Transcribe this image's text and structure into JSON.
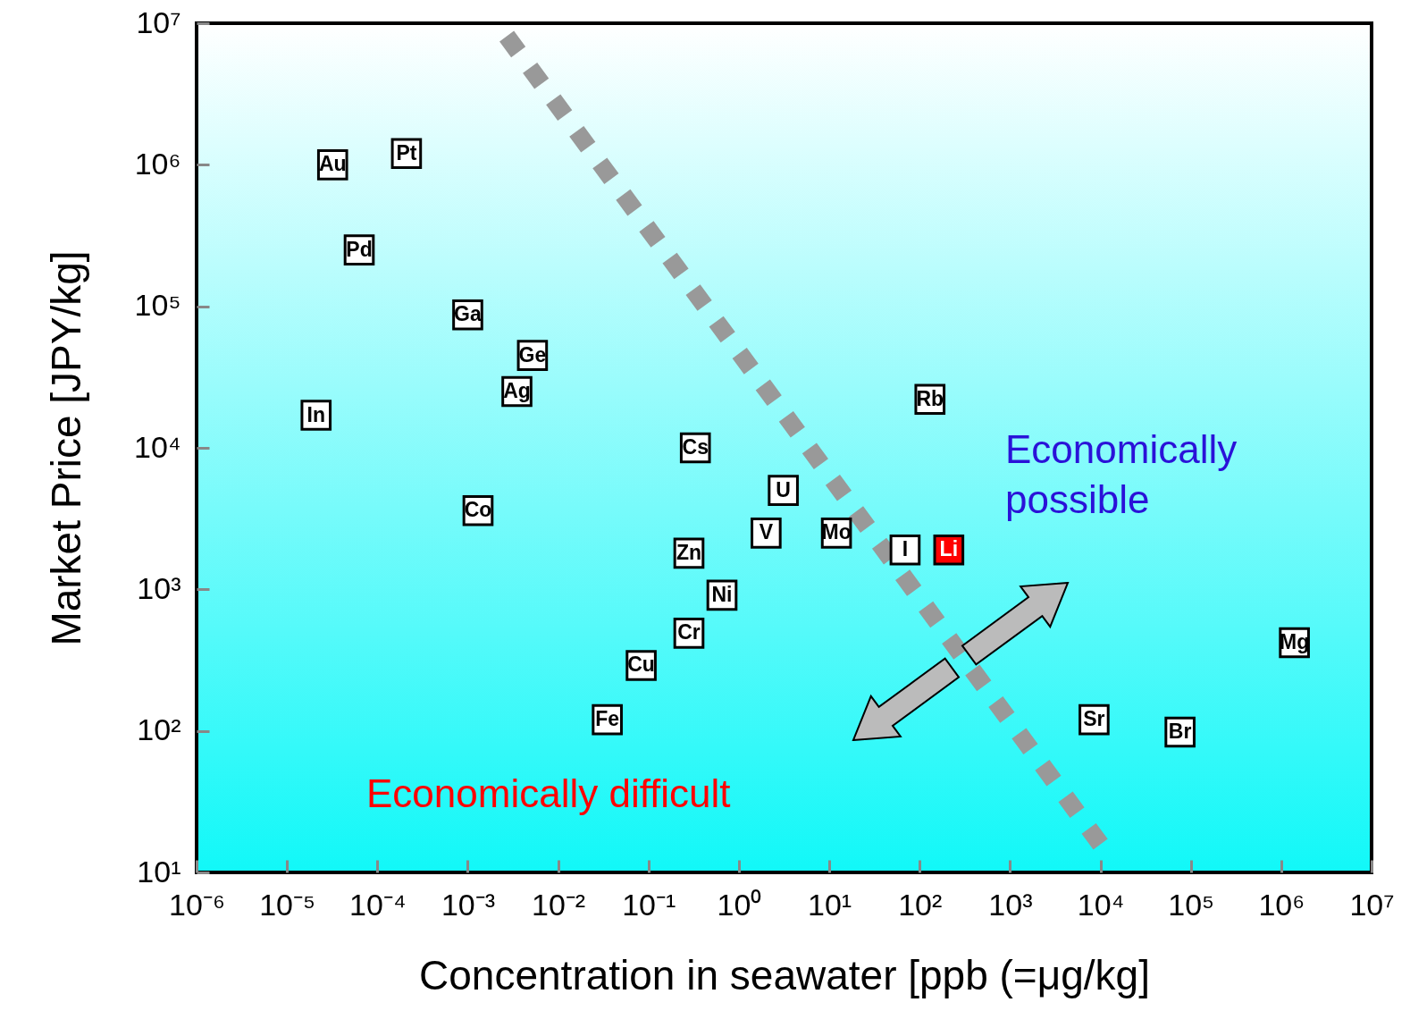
{
  "chart_data": {
    "type": "scatter",
    "xlabel": "Concentration in seawater [ppb (=μg/kg]",
    "ylabel": "Market Price [JPY/kg]",
    "log": "xy",
    "grid": false,
    "marker": "square",
    "xlim": [
      1e-06,
      10000000.0
    ],
    "ylim": [
      10,
      10000000.0
    ],
    "xticks": [
      {
        "value": 1e-06,
        "label": "10⁻⁶"
      },
      {
        "value": 1e-05,
        "label": "10⁻⁵"
      },
      {
        "value": 0.0001,
        "label": "10⁻⁴"
      },
      {
        "value": 0.001,
        "label": "10⁻³"
      },
      {
        "value": 0.01,
        "label": "10⁻²"
      },
      {
        "value": 0.1,
        "label": "10⁻¹"
      },
      {
        "value": 1,
        "label": "10⁰"
      },
      {
        "value": 10,
        "label": "10¹"
      },
      {
        "value": 100,
        "label": "10²"
      },
      {
        "value": 1000,
        "label": "10³"
      },
      {
        "value": 10000,
        "label": "10⁴"
      },
      {
        "value": 100000,
        "label": "10⁵"
      },
      {
        "value": 1000000,
        "label": "10⁶"
      },
      {
        "value": 10000000,
        "label": "10⁷"
      }
    ],
    "yticks": [
      {
        "value": 10,
        "label": "10¹"
      },
      {
        "value": 100,
        "label": "10²"
      },
      {
        "value": 1000,
        "label": "10³"
      },
      {
        "value": 10000,
        "label": "10⁴"
      },
      {
        "value": 100000,
        "label": "10⁵"
      },
      {
        "value": 1000000,
        "label": "10⁶"
      },
      {
        "value": 10000000,
        "label": "10⁷"
      }
    ],
    "annotations": [
      "Economically difficult",
      "Economically possible"
    ],
    "series": [
      {
        "type": "line",
        "marker": "none",
        "line_style": "dashed",
        "color": "#999999",
        "x": [
          0.0027,
          13000
        ],
        "values": [
          8100000,
          12.6
        ]
      },
      {
        "name": "Au",
        "color": "#ffffff",
        "x": [
          3.2e-05
        ],
        "values": [
          1000000
        ]
      },
      {
        "name": "Pt",
        "color": "#ffffff",
        "x": [
          0.00021
        ],
        "values": [
          1200000
        ]
      },
      {
        "name": "Pd",
        "color": "#ffffff",
        "x": [
          6.3e-05
        ],
        "values": [
          250000
        ]
      },
      {
        "name": "Ga",
        "color": "#ffffff",
        "x": [
          0.001
        ],
        "values": [
          87000
        ]
      },
      {
        "name": "Ge",
        "color": "#ffffff",
        "x": [
          0.0052
        ],
        "values": [
          45000
        ]
      },
      {
        "name": "Ag",
        "color": "#ffffff",
        "x": [
          0.0035
        ],
        "values": [
          25000
        ]
      },
      {
        "name": "In",
        "color": "#ffffff",
        "x": [
          2.1e-05
        ],
        "values": [
          17000
        ]
      },
      {
        "name": "Co",
        "color": "#ffffff",
        "x": [
          0.0013
        ],
        "values": [
          3600
        ]
      },
      {
        "name": "Cs",
        "color": "#ffffff",
        "x": [
          0.33
        ],
        "values": [
          10000
        ]
      },
      {
        "name": "U",
        "color": "#ffffff",
        "x": [
          3.1
        ],
        "values": [
          5000
        ]
      },
      {
        "name": "V",
        "color": "#ffffff",
        "x": [
          2.0
        ],
        "values": [
          2500
        ]
      },
      {
        "name": "Mo",
        "color": "#ffffff",
        "x": [
          12
        ],
        "values": [
          2500
        ]
      },
      {
        "name": "I",
        "color": "#ffffff",
        "x": [
          69
        ],
        "values": [
          1900
        ]
      },
      {
        "name": "Li",
        "color": "#ff0000",
        "x": [
          210
        ],
        "values": [
          1900
        ]
      },
      {
        "name": "Rb",
        "color": "#ffffff",
        "x": [
          130
        ],
        "values": [
          22000
        ]
      },
      {
        "name": "Zn",
        "color": "#ffffff",
        "x": [
          0.28
        ],
        "values": [
          1800
        ]
      },
      {
        "name": "Ni",
        "color": "#ffffff",
        "x": [
          0.65
        ],
        "values": [
          910
        ]
      },
      {
        "name": "Cr",
        "color": "#ffffff",
        "x": [
          0.28
        ],
        "values": [
          490
        ]
      },
      {
        "name": "Cu",
        "color": "#ffffff",
        "x": [
          0.083
        ],
        "values": [
          290
        ]
      },
      {
        "name": "Fe",
        "color": "#ffffff",
        "x": [
          0.035
        ],
        "values": [
          120
        ]
      },
      {
        "name": "Sr",
        "color": "#ffffff",
        "x": [
          8500
        ],
        "values": [
          120
        ]
      },
      {
        "name": "Br",
        "color": "#ffffff",
        "x": [
          76000
        ],
        "values": [
          98
        ]
      },
      {
        "name": "Mg",
        "color": "#ffffff",
        "x": [
          1400000
        ],
        "values": [
          420
        ]
      }
    ]
  }
}
